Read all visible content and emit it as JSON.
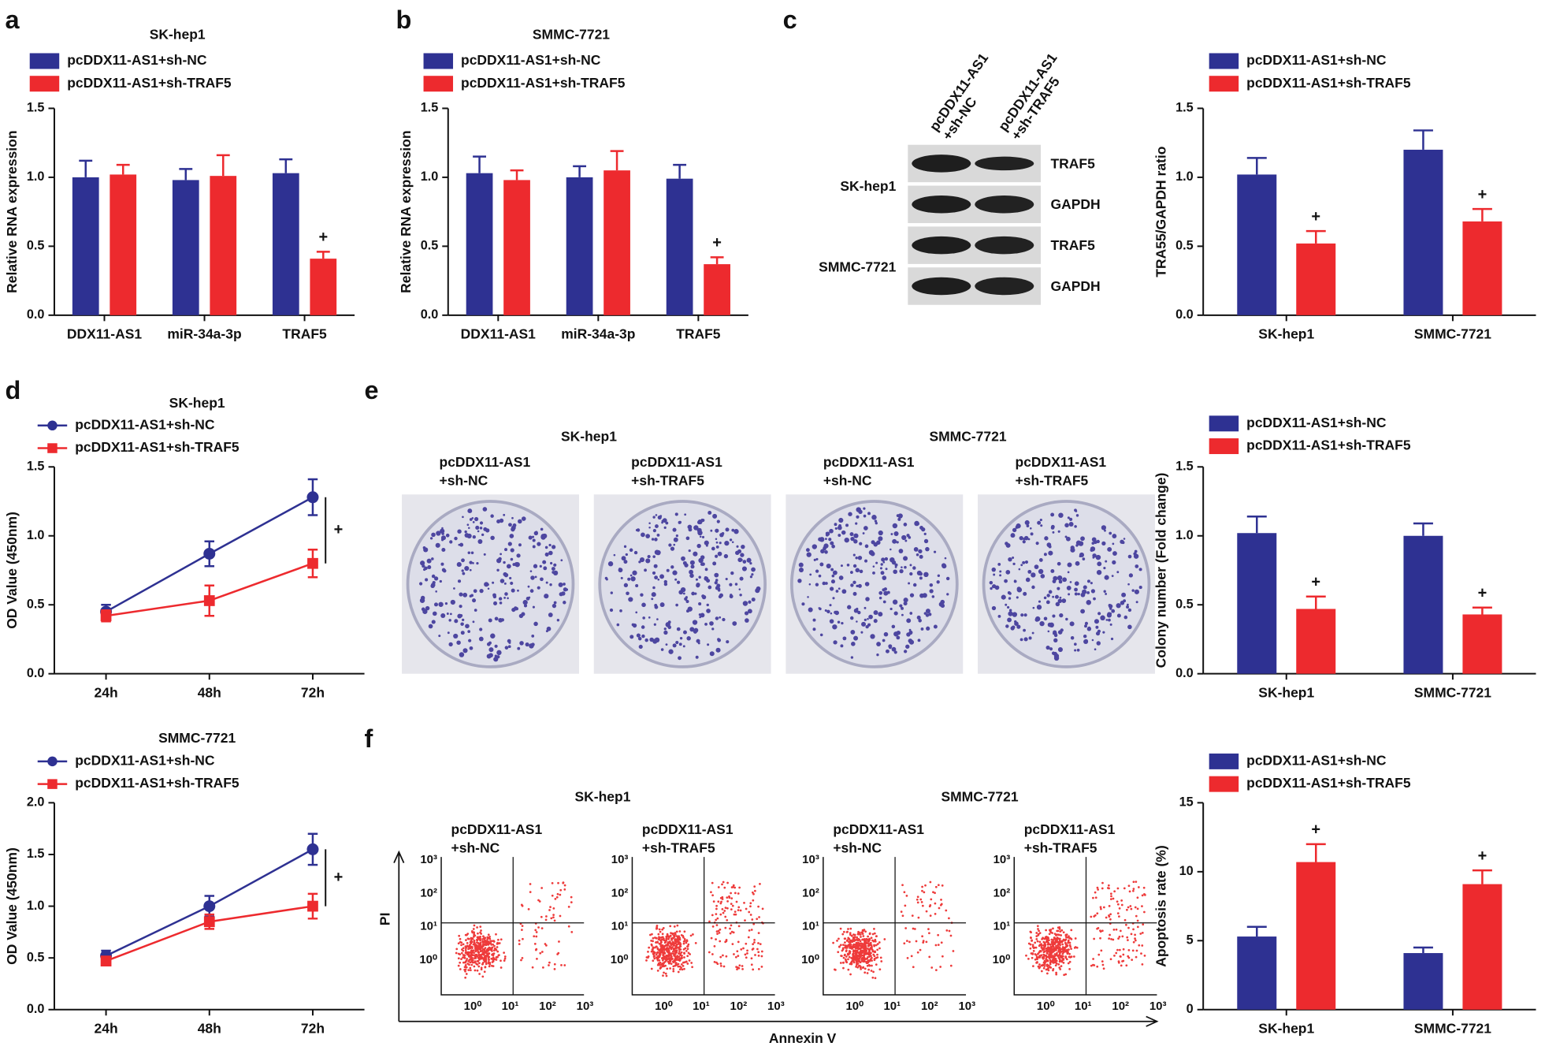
{
  "chart_data": [
    {
      "panel": "a",
      "type": "bar",
      "title": "SK-hep1",
      "ylabel": "Relative RNA expression",
      "categories": [
        "DDX11-AS1",
        "miR-34a-3p",
        "TRAF5"
      ],
      "series": [
        {
          "name": "pcDDX11-AS1+sh-NC",
          "color": "#2e3192",
          "values": [
            1.0,
            0.98,
            1.03
          ],
          "errors": [
            0.12,
            0.08,
            0.1
          ]
        },
        {
          "name": "pcDDX11-AS1+sh-TRAF5",
          "color": "#ed2a2e",
          "values": [
            1.02,
            1.01,
            0.41
          ],
          "errors": [
            0.07,
            0.15,
            0.05
          ],
          "annotations": [
            null,
            null,
            "+"
          ]
        }
      ],
      "ylim": [
        0,
        1.5
      ],
      "yticks": [
        {
          "value": 0,
          "label": "0.0"
        },
        0.5,
        {
          "value": 1,
          "label": "1.0"
        },
        1.5
      ]
    },
    {
      "panel": "b",
      "type": "bar",
      "title": "SMMC-7721",
      "ylabel": "Relative RNA expression",
      "categories": [
        "DDX11-AS1",
        "miR-34a-3p",
        "TRAF5"
      ],
      "series": [
        {
          "name": "pcDDX11-AS1+sh-NC",
          "color": "#2e3192",
          "values": [
            1.03,
            1.0,
            0.99
          ],
          "errors": [
            0.12,
            0.08,
            0.1
          ]
        },
        {
          "name": "pcDDX11-AS1+sh-TRAF5",
          "color": "#ed2a2e",
          "values": [
            0.98,
            1.05,
            0.37
          ],
          "errors": [
            0.07,
            0.14,
            0.05
          ],
          "annotations": [
            null,
            null,
            "+"
          ]
        }
      ],
      "ylim": [
        0,
        1.5
      ],
      "yticks": [
        {
          "value": 0,
          "label": "0.0"
        },
        0.5,
        {
          "value": 1,
          "label": "1.0"
        },
        1.5
      ]
    },
    {
      "panel": "c",
      "type": "bar",
      "ylabel": "TRA55/GAPDH ratio",
      "categories": [
        "SK-hep1",
        "SMMC-7721"
      ],
      "series": [
        {
          "name": "pcDDX11-AS1+sh-NC",
          "color": "#2e3192",
          "values": [
            1.02,
            1.2
          ],
          "errors": [
            0.12,
            0.14
          ]
        },
        {
          "name": "pcDDX11-AS1+sh-TRAF5",
          "color": "#ed2a2e",
          "values": [
            0.52,
            0.68
          ],
          "errors": [
            0.09,
            0.09
          ],
          "annotations": [
            "+",
            "+"
          ]
        }
      ],
      "ylim": [
        0,
        1.5
      ],
      "yticks": [
        {
          "value": 0,
          "label": "0.0"
        },
        0.5,
        {
          "value": 1,
          "label": "1.0"
        },
        1.5
      ]
    },
    {
      "panel": "d",
      "type": "line",
      "title": "SK-hep1",
      "ylabel": "OD Value (450nm)",
      "categories": [
        "24h",
        "48h",
        "72h"
      ],
      "annotation": "+",
      "series": [
        {
          "name": "pcDDX11-AS1+sh-NC",
          "color": "#2e3192",
          "marker": "circle",
          "values": [
            0.45,
            0.87,
            1.28
          ],
          "errors": [
            0.05,
            0.09,
            0.13
          ]
        },
        {
          "name": "pcDDX11-AS1+sh-TRAF5",
          "color": "#ed2a2e",
          "marker": "square",
          "values": [
            0.42,
            0.53,
            0.8
          ],
          "errors": [
            0.04,
            0.11,
            0.1
          ]
        }
      ],
      "ylim": [
        0,
        1.5
      ],
      "yticks": [
        {
          "value": 0,
          "label": "0.0"
        },
        0.5,
        {
          "value": 1,
          "label": "1.0"
        },
        1.5
      ]
    },
    {
      "type": "line",
      "title": "SMMC-7721",
      "ylabel": "OD Value (450nm)",
      "categories": [
        "24h",
        "48h",
        "72h"
      ],
      "annotation": "+",
      "series": [
        {
          "name": "pcDDX11-AS1+sh-NC",
          "color": "#2e3192",
          "marker": "circle",
          "values": [
            0.52,
            1.0,
            1.55
          ],
          "errors": [
            0.05,
            0.1,
            0.15
          ]
        },
        {
          "name": "pcDDX11-AS1+sh-TRAF5",
          "color": "#ed2a2e",
          "marker": "square",
          "values": [
            0.47,
            0.85,
            1.0
          ],
          "errors": [
            0.04,
            0.07,
            0.12
          ]
        }
      ],
      "ylim": [
        0,
        2
      ],
      "yticks": [
        {
          "value": 0,
          "label": "0.0"
        },
        0.5,
        {
          "value": 1,
          "label": "1.0"
        },
        1.5,
        {
          "value": 2,
          "label": "2.0"
        }
      ]
    },
    {
      "type": "bar",
      "ylabel": "Colony number (Fold change)",
      "categories": [
        "SK-hep1",
        "SMMC-7721"
      ],
      "series": [
        {
          "name": "pcDDX11-AS1+sh-NC",
          "color": "#2e3192",
          "values": [
            1.02,
            1.0
          ],
          "errors": [
            0.12,
            0.09
          ]
        },
        {
          "name": "pcDDX11-AS1+sh-TRAF5",
          "color": "#ed2a2e",
          "values": [
            0.47,
            0.43
          ],
          "errors": [
            0.09,
            0.05
          ],
          "annotations": [
            "+",
            "+"
          ]
        }
      ],
      "ylim": [
        0,
        1.5
      ],
      "yticks": [
        {
          "value": 0,
          "label": "0.0"
        },
        0.5,
        {
          "value": 1,
          "label": "1.0"
        },
        1.5
      ]
    },
    {
      "type": "bar",
      "ylabel": "Apoptosis rate (%)",
      "categories": [
        "SK-hep1",
        "SMMC-7721"
      ],
      "series": [
        {
          "name": "pcDDX11-AS1+sh-NC",
          "color": "#2e3192",
          "values": [
            5.3,
            4.1
          ],
          "errors": [
            0.7,
            0.4
          ]
        },
        {
          "name": "pcDDX11-AS1+sh-TRAF5",
          "color": "#ed2a2e",
          "values": [
            10.7,
            9.1
          ],
          "errors": [
            1.3,
            1.0
          ],
          "annotations": [
            "+",
            "+"
          ]
        }
      ],
      "ylim": [
        0,
        15
      ],
      "yticks": [
        0,
        5,
        10,
        15
      ]
    }
  ],
  "blot": {
    "columns": [
      [
        "pcDDX11-AS1",
        "+sh-NC"
      ],
      [
        "pcDDX11-AS1",
        "+sh-TRAF5"
      ]
    ],
    "rows": [
      "SK-hep1",
      "SMMC-7721"
    ],
    "bands": [
      "TRAF5",
      "GAPDH",
      "TRAF5",
      "GAPDH"
    ]
  },
  "colony": {
    "panel": "e",
    "groups": [
      "SK-hep1",
      "SMMC-7721"
    ],
    "plates": [
      [
        "pcDDX11-AS1",
        "+sh-NC"
      ],
      [
        "pcDDX11-AS1",
        "+sh-TRAF5"
      ],
      [
        "pcDDX11-AS1",
        "+sh-NC"
      ],
      [
        "pcDDX11-AS1",
        "+sh-TRAF5"
      ]
    ]
  },
  "flow": {
    "panel": "f",
    "groups": [
      "SK-hep1",
      "SMMC-7721"
    ],
    "plates": [
      [
        "pcDDX11-AS1",
        "+sh-NC"
      ],
      [
        "pcDDX11-AS1",
        "+sh-TRAF5"
      ],
      [
        "pcDDX11-AS1",
        "+sh-NC"
      ],
      [
        "pcDDX11-AS1",
        "+sh-TRAF5"
      ]
    ],
    "xlabel": "Annexin V",
    "ylabel": "PI",
    "ticks": [
      "10⁰",
      "10¹",
      "10²",
      "10³"
    ]
  }
}
